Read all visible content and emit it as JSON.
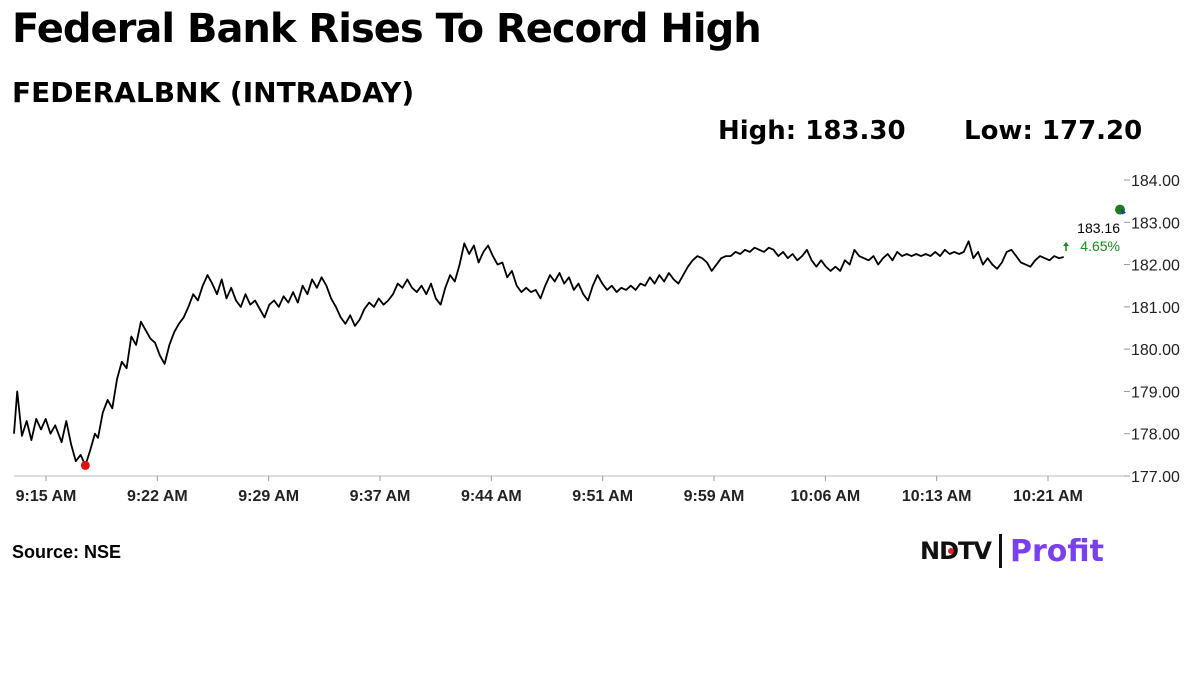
{
  "header": {
    "title": "Federal Bank Rises To Record High",
    "subtitle": "FEDERALBNK (INTRADAY)",
    "high_label": "High: 183.30",
    "low_label": "Low: 177.20"
  },
  "footer": {
    "source": "Source: NSE",
    "logo_text_ndtv": "NDTV",
    "logo_text_profit": "Profit"
  },
  "colors": {
    "line": "#000000",
    "low_marker": "#e01010",
    "high_marker": "#1e7b1e",
    "change_text": "#1a8a1a",
    "logo_profit": "#7b3ff2"
  },
  "chart_data": {
    "type": "line",
    "title": "FEDERALBNK (INTRADAY)",
    "xlabel": "",
    "ylabel": "",
    "x_ticks": [
      "9:15 AM",
      "9:22 AM",
      "9:29 AM",
      "9:37 AM",
      "9:44 AM",
      "9:51 AM",
      "9:59 AM",
      "10:06 AM",
      "10:13 AM",
      "10:21 AM"
    ],
    "y_ticks": [
      "177.00",
      "178.00",
      "179.00",
      "180.00",
      "181.00",
      "182.00",
      "183.00",
      "184.00"
    ],
    "ylim": [
      177,
      184
    ],
    "x_range_minutes": [
      0,
      70
    ],
    "y_axis_position": "right",
    "grid": false,
    "series": [
      {
        "values": [
          [
            0,
            178.0
          ],
          [
            0.2,
            179.0
          ],
          [
            0.5,
            177.95
          ],
          [
            0.8,
            178.3
          ],
          [
            1.1,
            177.85
          ],
          [
            1.4,
            178.35
          ],
          [
            1.7,
            178.1
          ],
          [
            2.0,
            178.35
          ],
          [
            2.3,
            178.0
          ],
          [
            2.6,
            178.2
          ],
          [
            3.0,
            177.8
          ],
          [
            3.3,
            178.3
          ],
          [
            3.6,
            177.75
          ],
          [
            3.9,
            177.35
          ],
          [
            4.2,
            177.5
          ],
          [
            4.5,
            177.25
          ],
          [
            4.8,
            177.6
          ],
          [
            5.1,
            178.0
          ],
          [
            5.3,
            177.9
          ],
          [
            5.6,
            178.5
          ],
          [
            5.9,
            178.8
          ],
          [
            6.2,
            178.6
          ],
          [
            6.5,
            179.3
          ],
          [
            6.8,
            179.7
          ],
          [
            7.1,
            179.55
          ],
          [
            7.4,
            180.3
          ],
          [
            7.7,
            180.1
          ],
          [
            8.0,
            180.65
          ],
          [
            8.3,
            180.45
          ],
          [
            8.6,
            180.25
          ],
          [
            8.9,
            180.15
          ],
          [
            9.2,
            179.85
          ],
          [
            9.5,
            179.65
          ],
          [
            9.8,
            180.1
          ],
          [
            10.1,
            180.4
          ],
          [
            10.4,
            180.6
          ],
          [
            10.7,
            180.75
          ],
          [
            11.0,
            181.0
          ],
          [
            11.3,
            181.3
          ],
          [
            11.6,
            181.15
          ],
          [
            11.9,
            181.5
          ],
          [
            12.2,
            181.75
          ],
          [
            12.5,
            181.55
          ],
          [
            12.8,
            181.3
          ],
          [
            13.1,
            181.65
          ],
          [
            13.4,
            181.2
          ],
          [
            13.7,
            181.45
          ],
          [
            14.0,
            181.15
          ],
          [
            14.3,
            181.0
          ],
          [
            14.6,
            181.3
          ],
          [
            14.9,
            181.05
          ],
          [
            15.2,
            181.15
          ],
          [
            15.5,
            180.95
          ],
          [
            15.8,
            180.75
          ],
          [
            16.1,
            181.05
          ],
          [
            16.4,
            181.15
          ],
          [
            16.7,
            181.0
          ],
          [
            17.0,
            181.25
          ],
          [
            17.3,
            181.1
          ],
          [
            17.6,
            181.35
          ],
          [
            17.9,
            181.1
          ],
          [
            18.2,
            181.5
          ],
          [
            18.5,
            181.3
          ],
          [
            18.8,
            181.65
          ],
          [
            19.1,
            181.45
          ],
          [
            19.4,
            181.7
          ],
          [
            19.7,
            181.5
          ],
          [
            20.0,
            181.2
          ],
          [
            20.3,
            181.0
          ],
          [
            20.6,
            180.75
          ],
          [
            20.9,
            180.6
          ],
          [
            21.2,
            180.8
          ],
          [
            21.5,
            180.55
          ],
          [
            21.8,
            180.7
          ],
          [
            22.1,
            180.95
          ],
          [
            22.4,
            181.1
          ],
          [
            22.7,
            181.0
          ],
          [
            23.0,
            181.2
          ],
          [
            23.3,
            181.05
          ],
          [
            23.6,
            181.15
          ],
          [
            23.9,
            181.3
          ],
          [
            24.2,
            181.55
          ],
          [
            24.5,
            181.45
          ],
          [
            24.8,
            181.65
          ],
          [
            25.1,
            181.45
          ],
          [
            25.4,
            181.35
          ],
          [
            25.7,
            181.5
          ],
          [
            26.0,
            181.3
          ],
          [
            26.3,
            181.55
          ],
          [
            26.6,
            181.2
          ],
          [
            26.9,
            181.05
          ],
          [
            27.2,
            181.45
          ],
          [
            27.5,
            181.75
          ],
          [
            27.8,
            181.6
          ],
          [
            28.1,
            182.0
          ],
          [
            28.4,
            182.5
          ],
          [
            28.7,
            182.25
          ],
          [
            29.0,
            182.45
          ],
          [
            29.3,
            182.05
          ],
          [
            29.6,
            182.3
          ],
          [
            29.9,
            182.45
          ],
          [
            30.2,
            182.2
          ],
          [
            30.5,
            182.0
          ],
          [
            30.8,
            182.05
          ],
          [
            31.1,
            181.7
          ],
          [
            31.4,
            181.85
          ],
          [
            31.7,
            181.5
          ],
          [
            32.0,
            181.35
          ],
          [
            32.3,
            181.45
          ],
          [
            32.6,
            181.35
          ],
          [
            32.9,
            181.4
          ],
          [
            33.2,
            181.2
          ],
          [
            33.5,
            181.5
          ],
          [
            33.8,
            181.75
          ],
          [
            34.1,
            181.6
          ],
          [
            34.4,
            181.8
          ],
          [
            34.7,
            181.55
          ],
          [
            35.0,
            181.7
          ],
          [
            35.3,
            181.4
          ],
          [
            35.6,
            181.55
          ],
          [
            35.9,
            181.3
          ],
          [
            36.2,
            181.15
          ],
          [
            36.5,
            181.5
          ],
          [
            36.8,
            181.75
          ],
          [
            37.1,
            181.55
          ],
          [
            37.4,
            181.4
          ],
          [
            37.7,
            181.5
          ],
          [
            38.0,
            181.35
          ],
          [
            38.3,
            181.45
          ],
          [
            38.6,
            181.4
          ],
          [
            38.9,
            181.5
          ],
          [
            39.2,
            181.4
          ],
          [
            39.5,
            181.55
          ],
          [
            39.8,
            181.5
          ],
          [
            40.1,
            181.7
          ],
          [
            40.4,
            181.55
          ],
          [
            40.7,
            181.75
          ],
          [
            41.0,
            181.6
          ],
          [
            41.3,
            181.8
          ],
          [
            41.6,
            181.65
          ],
          [
            41.9,
            181.55
          ],
          [
            42.2,
            181.75
          ],
          [
            42.5,
            181.95
          ],
          [
            42.8,
            182.1
          ],
          [
            43.1,
            182.2
          ],
          [
            43.4,
            182.15
          ],
          [
            43.7,
            182.05
          ],
          [
            44.0,
            181.85
          ],
          [
            44.3,
            182.0
          ],
          [
            44.6,
            182.15
          ],
          [
            44.9,
            182.2
          ],
          [
            45.2,
            182.2
          ],
          [
            45.5,
            182.3
          ],
          [
            45.8,
            182.25
          ],
          [
            46.1,
            182.35
          ],
          [
            46.4,
            182.3
          ],
          [
            46.7,
            182.4
          ],
          [
            47.0,
            182.35
          ],
          [
            47.3,
            182.3
          ],
          [
            47.6,
            182.4
          ],
          [
            47.9,
            182.35
          ],
          [
            48.2,
            182.2
          ],
          [
            48.5,
            182.3
          ],
          [
            48.8,
            182.15
          ],
          [
            49.1,
            182.25
          ],
          [
            49.4,
            182.1
          ],
          [
            49.7,
            182.2
          ],
          [
            50.0,
            182.35
          ],
          [
            50.3,
            182.1
          ],
          [
            50.6,
            181.95
          ],
          [
            50.9,
            182.1
          ],
          [
            51.2,
            181.95
          ],
          [
            51.5,
            181.85
          ],
          [
            51.8,
            181.95
          ],
          [
            52.1,
            181.85
          ],
          [
            52.4,
            182.1
          ],
          [
            52.7,
            182.0
          ],
          [
            53.0,
            182.35
          ],
          [
            53.3,
            182.2
          ],
          [
            53.6,
            182.15
          ],
          [
            53.9,
            182.1
          ],
          [
            54.2,
            182.2
          ],
          [
            54.5,
            182.0
          ],
          [
            54.8,
            182.15
          ],
          [
            55.1,
            182.25
          ],
          [
            55.4,
            182.1
          ],
          [
            55.7,
            182.3
          ],
          [
            56.0,
            182.2
          ],
          [
            56.3,
            182.25
          ],
          [
            56.6,
            182.2
          ],
          [
            56.9,
            182.25
          ],
          [
            57.2,
            182.2
          ],
          [
            57.5,
            182.25
          ],
          [
            57.8,
            182.2
          ],
          [
            58.1,
            182.3
          ],
          [
            58.4,
            182.2
          ],
          [
            58.7,
            182.35
          ],
          [
            59.0,
            182.25
          ],
          [
            59.3,
            182.3
          ],
          [
            59.6,
            182.25
          ],
          [
            59.9,
            182.3
          ],
          [
            60.2,
            182.55
          ],
          [
            60.5,
            182.15
          ],
          [
            60.8,
            182.3
          ],
          [
            61.1,
            182.0
          ],
          [
            61.4,
            182.15
          ],
          [
            61.7,
            182.0
          ],
          [
            62.0,
            181.9
          ],
          [
            62.3,
            182.05
          ],
          [
            62.6,
            182.3
          ],
          [
            62.9,
            182.35
          ],
          [
            63.2,
            182.2
          ],
          [
            63.5,
            182.05
          ],
          [
            63.8,
            182.0
          ],
          [
            64.1,
            181.95
          ],
          [
            64.4,
            182.1
          ],
          [
            64.7,
            182.2
          ],
          [
            65.0,
            182.15
          ],
          [
            65.3,
            182.1
          ],
          [
            65.6,
            182.2
          ],
          [
            65.9,
            182.15
          ],
          [
            66.2,
            182.18
          ]
        ]
      }
    ],
    "low_point": {
      "x": 4.5,
      "y": 177.25
    },
    "high_point": {
      "x": 70.0,
      "y": 183.3
    },
    "last_value_label": "183.16",
    "change_label": "4.65%"
  }
}
